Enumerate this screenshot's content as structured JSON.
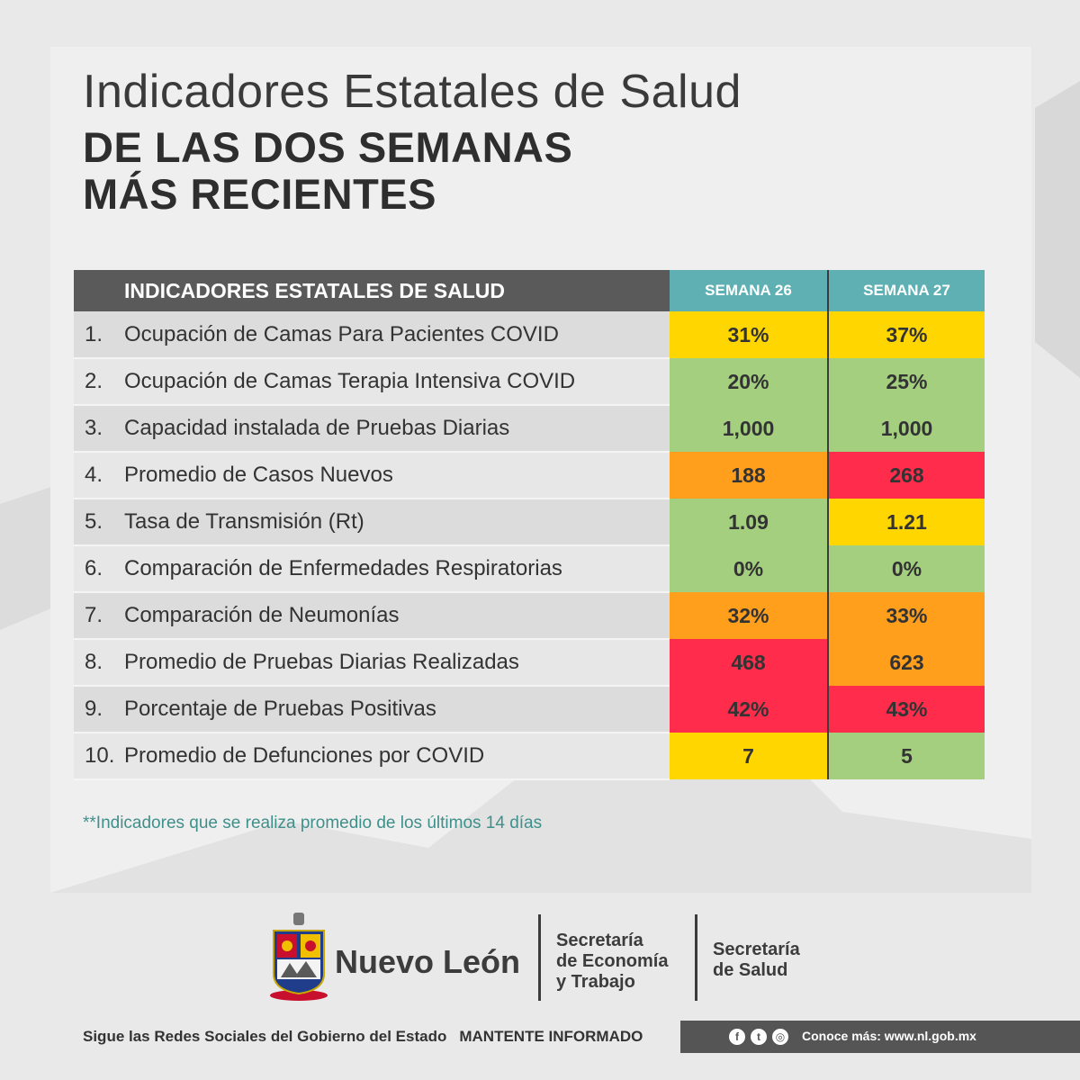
{
  "header": {
    "title_line1": "Indicadores Estatales de Salud",
    "title_line2": "DE LAS DOS SEMANAS",
    "title_line3": "MÁS RECIENTES"
  },
  "table": {
    "header_name": "INDICADORES ESTATALES DE SALUD",
    "header_week1": "SEMANA 26",
    "header_week2": "SEMANA 27",
    "rows": [
      {
        "num": "1.",
        "name": "Ocupación de Camas Para Pacientes COVID",
        "w1": "31%",
        "w2": "37%",
        "c1": "#ffd600",
        "c2": "#ffd600"
      },
      {
        "num": "2.",
        "name": "Ocupación de Camas Terapia Intensiva COVID",
        "w1": "20%",
        "w2": "25%",
        "c1": "#a3cf7f",
        "c2": "#a3cf7f"
      },
      {
        "num": "3.",
        "name": "Capacidad instalada de Pruebas Diarias",
        "w1": "1,000",
        "w2": "1,000",
        "c1": "#a3cf7f",
        "c2": "#a3cf7f"
      },
      {
        "num": "4.",
        "name": "Promedio de Casos Nuevos",
        "w1": "188",
        "w2": "268",
        "c1": "#ff9f1c",
        "c2": "#ff2d4b"
      },
      {
        "num": "5.",
        "name": "Tasa de Transmisión (Rt)",
        "w1": "1.09",
        "w2": "1.21",
        "c1": "#a3cf7f",
        "c2": "#ffd600"
      },
      {
        "num": "6.",
        "name": "Comparación de Enfermedades Respiratorias",
        "w1": "0%",
        "w2": "0%",
        "c1": "#a3cf7f",
        "c2": "#a3cf7f"
      },
      {
        "num": "7.",
        "name": "Comparación de Neumonías",
        "w1": "32%",
        "w2": "33%",
        "c1": "#ff9f1c",
        "c2": "#ff9f1c"
      },
      {
        "num": "8.",
        "name": "Promedio de Pruebas Diarias Realizadas",
        "w1": "468",
        "w2": "623",
        "c1": "#ff2d4b",
        "c2": "#ff9f1c"
      },
      {
        "num": "9.",
        "name": "Porcentaje de Pruebas Positivas",
        "w1": "42%",
        "w2": "43%",
        "c1": "#ff2d4b",
        "c2": "#ff2d4b"
      },
      {
        "num": "10.",
        "name": "Promedio de Defunciones por COVID",
        "w1": "7",
        "w2": "5",
        "c1": "#ffd600",
        "c2": "#a3cf7f"
      }
    ]
  },
  "note": "**Indicadores que se realiza promedio de los últimos 14 días",
  "logos": {
    "state": "Nuevo León",
    "secretaria1_line1": "Secretaría",
    "secretaria1_line2": "de Economía",
    "secretaria1_line3": "y Trabajo",
    "secretaria2_line1": "Secretaría",
    "secretaria2_line2": "de Salud"
  },
  "footer": {
    "follow": "Sigue las Redes Sociales del Gobierno del Estado",
    "informed": "MANTENTE INFORMADO",
    "site": "Conoce más: www.nl.gob.mx",
    "social_icons": [
      "facebook-icon",
      "twitter-icon",
      "instagram-icon"
    ]
  }
}
